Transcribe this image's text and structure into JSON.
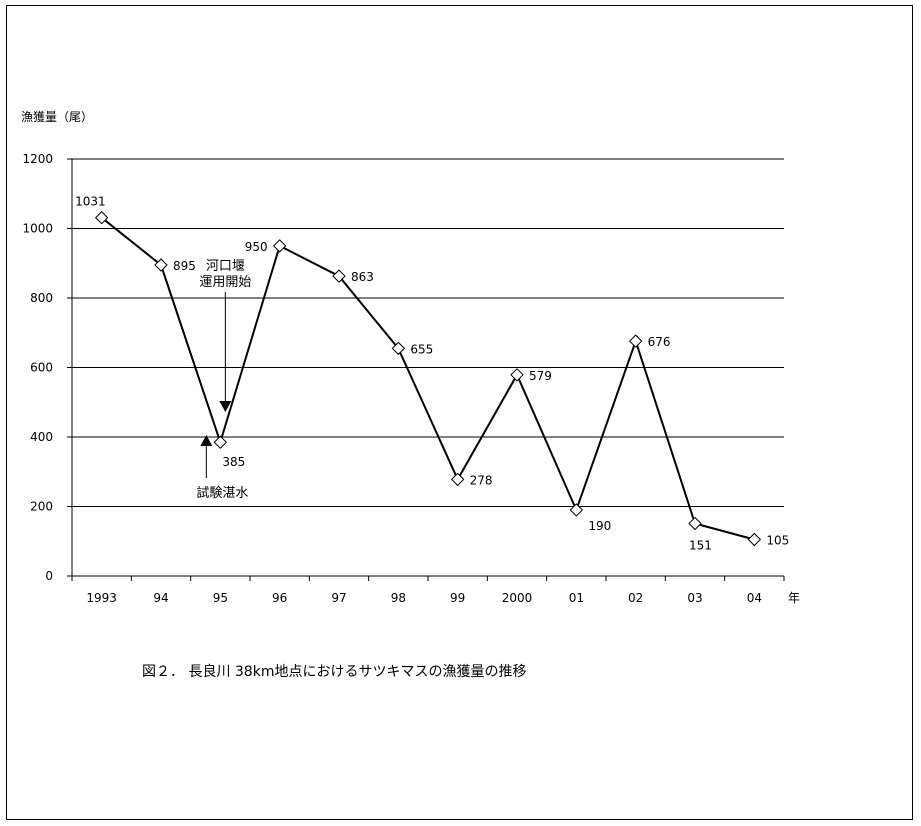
{
  "chart_data": {
    "type": "line",
    "ylabel": "漁獲量（尾）",
    "xlabel": "年",
    "categories": [
      "1993",
      "94",
      "95",
      "96",
      "97",
      "98",
      "99",
      "2000",
      "01",
      "02",
      "03",
      "04"
    ],
    "series": [
      {
        "values": [
          1031,
          895,
          385,
          950,
          863,
          655,
          278,
          579,
          190,
          676,
          151,
          105
        ]
      }
    ],
    "ylim": [
      0,
      1200
    ],
    "yticks": [
      0,
      200,
      400,
      600,
      800,
      1000,
      1200
    ],
    "grid": true,
    "marker": "diamond",
    "annotations": [
      {
        "text_lines": [
          "河口堰",
          "運用開始"
        ],
        "category": "95",
        "value": 515
      },
      {
        "text_lines": [
          "試験湛水"
        ],
        "category": "95",
        "value": 420
      }
    ]
  },
  "caption": "図２．  長良川 38km地点におけるサツキマスの漁獲量の推移"
}
